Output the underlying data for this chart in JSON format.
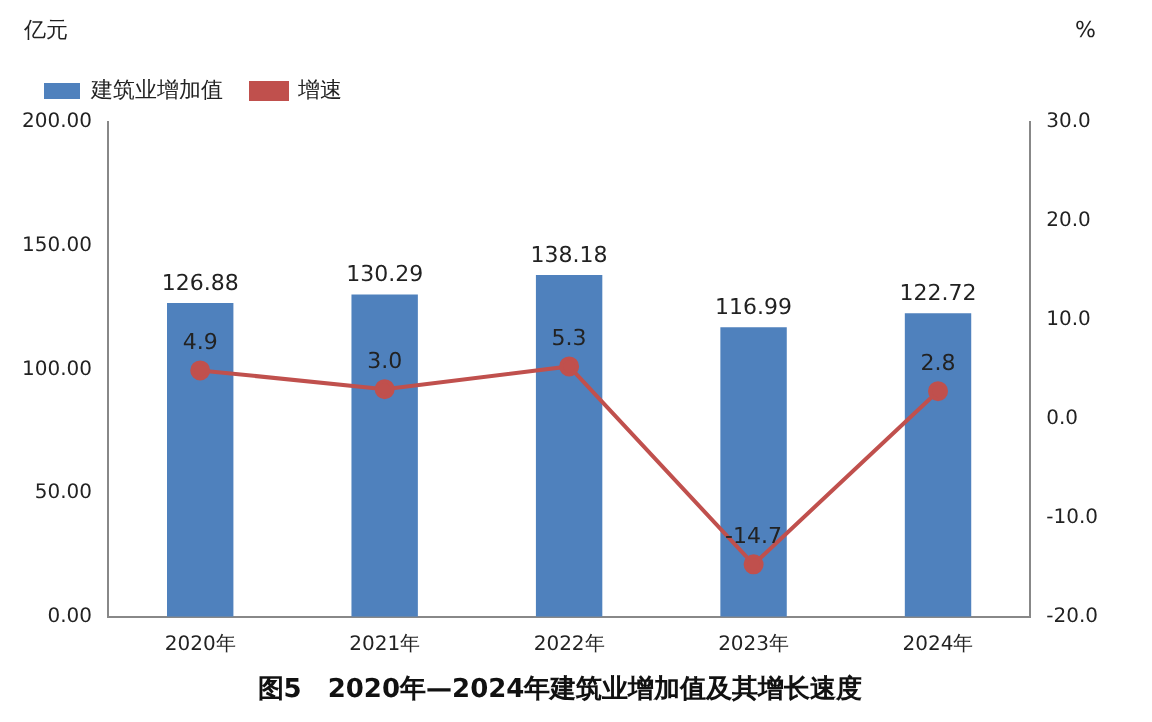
{
  "chart_data": {
    "type": "bar",
    "title": "图5　2020年—2024年建筑业增加值及其增长速度",
    "ylabel": "亿元",
    "y2label": "%",
    "categories": [
      "2020年",
      "2021年",
      "2022年",
      "2023年",
      "2024年"
    ],
    "series": [
      {
        "name": "建筑业增加值",
        "color": "#4f81bd",
        "values": [
          126.88,
          130.29,
          138.18,
          116.99,
          122.72
        ],
        "value_labels": [
          "126.88",
          "130.29",
          "138.18",
          "116.99",
          "122.72"
        ]
      },
      {
        "name": "增速",
        "type": "line",
        "axis": "y2",
        "color": "#c0504d",
        "marker": "circle",
        "values": [
          4.9,
          3.0,
          5.3,
          -14.7,
          2.8
        ],
        "value_labels": [
          "4.9",
          "3.0",
          "5.3",
          "-14.7",
          "2.8"
        ]
      }
    ],
    "ylim": [
      0,
      200
    ],
    "yticks": [
      {
        "value": 0,
        "label": "0.00"
      },
      {
        "value": 50,
        "label": "50.00"
      },
      {
        "value": 100,
        "label": "100.00"
      },
      {
        "value": 150,
        "label": "150.00"
      },
      {
        "value": 200,
        "label": "200.00"
      }
    ],
    "y2lim": [
      -20,
      30
    ],
    "y2ticks": [
      {
        "value": -20,
        "label": "-20.0"
      },
      {
        "value": -10,
        "label": "-10.0"
      },
      {
        "value": 0,
        "label": "0.0"
      },
      {
        "value": 10,
        "label": "10.0"
      },
      {
        "value": 20,
        "label": "20.0"
      },
      {
        "value": 30,
        "label": "30.0"
      }
    ],
    "grid": false,
    "legend": "top left"
  }
}
